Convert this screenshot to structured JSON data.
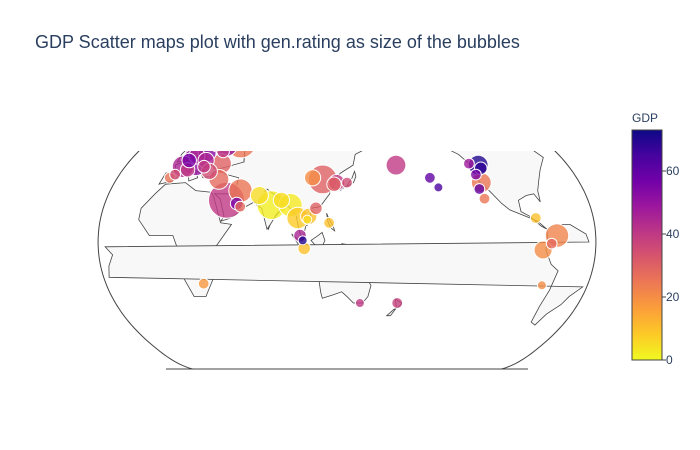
{
  "title": "GDP Scatter maps plot with gen.rating as size of the bubbles",
  "colors": {
    "scale": [
      "#0d0887",
      "#46039f",
      "#7201a8",
      "#9c179e",
      "#bd3786",
      "#d8576b",
      "#ed7953",
      "#fb9f3a",
      "#fdca26",
      "#f0f921"
    ],
    "land": "#f8f8f8",
    "coastline": "#444444"
  },
  "chart_data": {
    "type": "scattergeo",
    "projection": "natural earth",
    "center_lon": 135,
    "size_variable": "gen.rating",
    "colorbar": {
      "title": "GDP",
      "range": [
        0,
        73
      ],
      "ticks": [
        0,
        20,
        40,
        60
      ]
    },
    "points": [
      {
        "lon": -73,
        "lat": 4,
        "gdp": 22,
        "size": 13
      },
      {
        "lon": -77,
        "lat": -1,
        "gdp": 28,
        "size": 6
      },
      {
        "lon": 28,
        "lat": -26,
        "gdp": 18,
        "size": 6
      },
      {
        "lon": -4,
        "lat": 40,
        "gdp": 26,
        "size": 6
      },
      {
        "lon": -1,
        "lat": 42,
        "gdp": 35,
        "size": 6
      },
      {
        "lon": 2,
        "lat": 47,
        "gdp": 45,
        "size": 12
      },
      {
        "lon": 7,
        "lat": 45,
        "gdp": 40,
        "size": 8
      },
      {
        "lon": 10,
        "lat": 50,
        "gdp": 50,
        "size": 15
      },
      {
        "lon": 4,
        "lat": 51,
        "gdp": 55,
        "size": 8
      },
      {
        "lon": 8,
        "lat": 54,
        "gdp": 45,
        "size": 9
      },
      {
        "lon": 15,
        "lat": 56,
        "gdp": 52,
        "size": 10
      },
      {
        "lon": 18,
        "lat": 51,
        "gdp": 45,
        "size": 9
      },
      {
        "lon": 19,
        "lat": 47,
        "gdp": 40,
        "size": 7
      },
      {
        "lon": 26,
        "lat": 62,
        "gdp": 50,
        "size": 14
      },
      {
        "lon": 19,
        "lat": 61,
        "gdp": 55,
        "size": 7
      },
      {
        "lon": 28,
        "lat": 57,
        "gdp": 40,
        "size": 7
      },
      {
        "lon": 25,
        "lat": 44,
        "gdp": 35,
        "size": 9
      },
      {
        "lon": 39,
        "lat": 63,
        "gdp": 25,
        "size": 17
      },
      {
        "lon": 32,
        "lat": 49,
        "gdp": 30,
        "size": 11
      },
      {
        "lon": 35,
        "lat": 39,
        "gdp": 28,
        "size": 11
      },
      {
        "lon": 45,
        "lat": 26,
        "gdp": 40,
        "size": 20
      },
      {
        "lon": 53,
        "lat": 24,
        "gdp": 55,
        "size": 7
      },
      {
        "lon": 54,
        "lat": 32,
        "gdp": 25,
        "size": 13
      },
      {
        "lon": 56,
        "lat": 22,
        "gdp": 28,
        "size": 6
      },
      {
        "lon": 69,
        "lat": 29,
        "gdp": 5,
        "size": 10
      },
      {
        "lon": 79,
        "lat": 23,
        "gdp": 2,
        "size": 16
      },
      {
        "lon": 86,
        "lat": 26,
        "gdp": 5,
        "size": 9
      },
      {
        "lon": 93,
        "lat": 23,
        "gdp": 3,
        "size": 13
      },
      {
        "lon": 99,
        "lat": 15,
        "gdp": 8,
        "size": 12
      },
      {
        "lon": 101,
        "lat": 4,
        "gdp": 45,
        "size": 7
      },
      {
        "lon": 103,
        "lat": 1,
        "gdp": 70,
        "size": 5
      },
      {
        "lon": 104,
        "lat": -4,
        "gdp": 10,
        "size": 7
      },
      {
        "lon": 107,
        "lat": 16,
        "gdp": 10,
        "size": 9
      },
      {
        "lon": 106,
        "lat": 14,
        "gdp": 5,
        "size": 5
      },
      {
        "lon": 112,
        "lat": 21,
        "gdp": 30,
        "size": 7
      },
      {
        "lon": 122,
        "lat": 12,
        "gdp": 10,
        "size": 6
      },
      {
        "lon": 108,
        "lat": 40,
        "gdp": 20,
        "size": 9
      },
      {
        "lon": 125,
        "lat": 36,
        "gdp": 30,
        "size": 8
      },
      {
        "lon": 116,
        "lat": 39,
        "gdp": 30,
        "size": 16
      },
      {
        "lon": 127,
        "lat": 37,
        "gdp": 40,
        "size": 9
      },
      {
        "lon": 135,
        "lat": 37,
        "gdp": 35,
        "size": 6
      },
      {
        "lon": 174,
        "lat": -38,
        "gdp": 38,
        "size": 6
      },
      {
        "lon": 145,
        "lat": -38,
        "gdp": 40,
        "size": 5
      },
      {
        "lon": 175,
        "lat": 48,
        "gdp": 40,
        "size": 11
      },
      {
        "lon": -160,
        "lat": 40,
        "gdp": 60,
        "size": 6
      },
      {
        "lon": -155,
        "lat": 34,
        "gdp": 64,
        "size": 5
      },
      {
        "lon": -125,
        "lat": 49,
        "gdp": 48,
        "size": 6
      },
      {
        "lon": -123,
        "lat": 42,
        "gdp": 55,
        "size": 6
      },
      {
        "lon": -118,
        "lat": 48,
        "gdp": 70,
        "size": 11
      },
      {
        "lon": -117,
        "lat": 46,
        "gdp": 68,
        "size": 7
      },
      {
        "lon": -121,
        "lat": 37,
        "gdp": 25,
        "size": 11
      },
      {
        "lon": -124,
        "lat": 33,
        "gdp": 60,
        "size": 6
      },
      {
        "lon": -122,
        "lat": 27,
        "gdp": 25,
        "size": 6
      },
      {
        "lon": -87,
        "lat": 15,
        "gdp": 10,
        "size": 6
      },
      {
        "lon": -83,
        "lat": -5,
        "gdp": 20,
        "size": 10
      },
      {
        "lon": -79,
        "lat": -27,
        "gdp": 20,
        "size": 5
      }
    ]
  }
}
